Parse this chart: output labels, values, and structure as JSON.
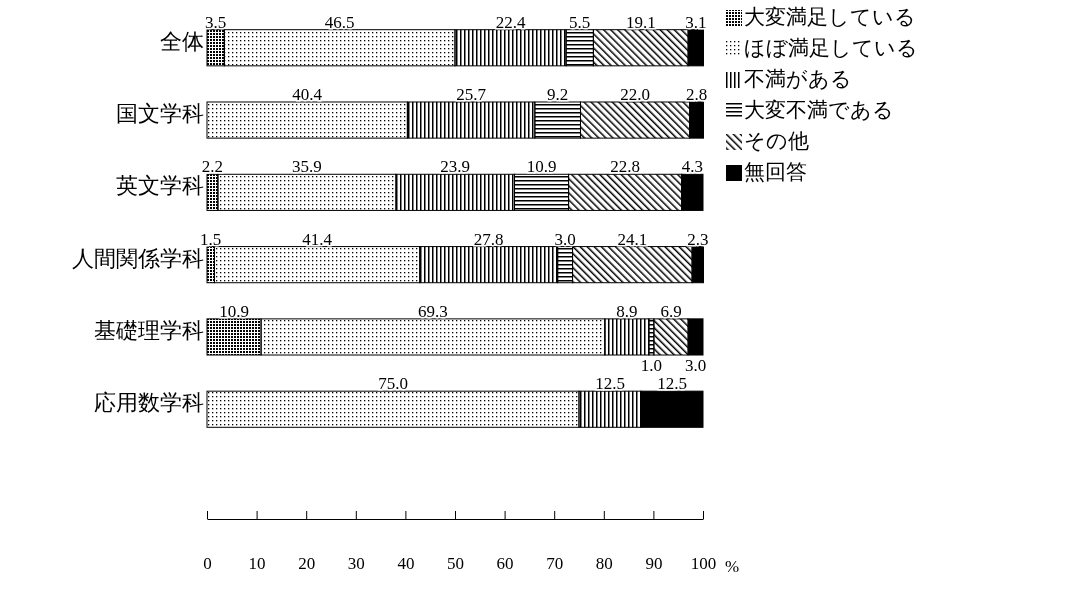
{
  "chart_data": {
    "type": "bar",
    "orientation": "horizontal",
    "stacked": true,
    "categories": [
      "全体",
      "国文学科",
      "英文学科",
      "人間関係学科",
      "基礎理学科",
      "応用数学科"
    ],
    "series": [
      {
        "name": "大変満足している",
        "color": "#000000",
        "values": [
          3.5,
          0,
          2.2,
          1.5,
          10.9,
          0
        ],
        "value_labels": [
          "3.5",
          null,
          "2.2",
          "1.5",
          "10.9",
          null
        ]
      },
      {
        "name": "ほぼ満足している",
        "color": "#000000",
        "values": [
          46.5,
          40.4,
          35.9,
          41.4,
          69.3,
          75.0
        ],
        "value_labels": [
          "46.5",
          "40.4",
          "35.9",
          "41.4",
          "69.3",
          "75.0"
        ]
      },
      {
        "name": "不満がある",
        "color": "#000000",
        "values": [
          22.4,
          25.7,
          23.9,
          27.8,
          8.9,
          12.5
        ],
        "value_labels": [
          "22.4",
          "25.7",
          "23.9",
          "27.8",
          "8.9",
          "12.5"
        ]
      },
      {
        "name": "大変不満である",
        "color": "#000000",
        "values": [
          5.5,
          9.2,
          10.9,
          3.0,
          1.0,
          0
        ],
        "value_labels": [
          "5.5",
          "9.2",
          "10.9",
          "3.0",
          "1.0",
          null
        ]
      },
      {
        "name": "その他",
        "color": "#000000",
        "values": [
          19.1,
          22.0,
          22.8,
          24.1,
          6.9,
          0
        ],
        "value_labels": [
          "19.1",
          "22.0",
          "22.8",
          "24.1",
          "6.9",
          null
        ]
      },
      {
        "name": "無回答",
        "color": "#000000",
        "values": [
          3.1,
          2.8,
          4.3,
          2.3,
          3.0,
          12.5
        ],
        "value_labels": [
          "3.1",
          "2.8",
          "4.3",
          "2.3",
          "3.0",
          "12.5"
        ]
      }
    ],
    "xlim": [
      0,
      100
    ],
    "xticks": [
      0,
      10,
      20,
      30,
      40,
      50,
      60,
      70,
      80,
      90,
      100
    ],
    "xlabel": "%",
    "legend": "top right",
    "grid": false
  }
}
